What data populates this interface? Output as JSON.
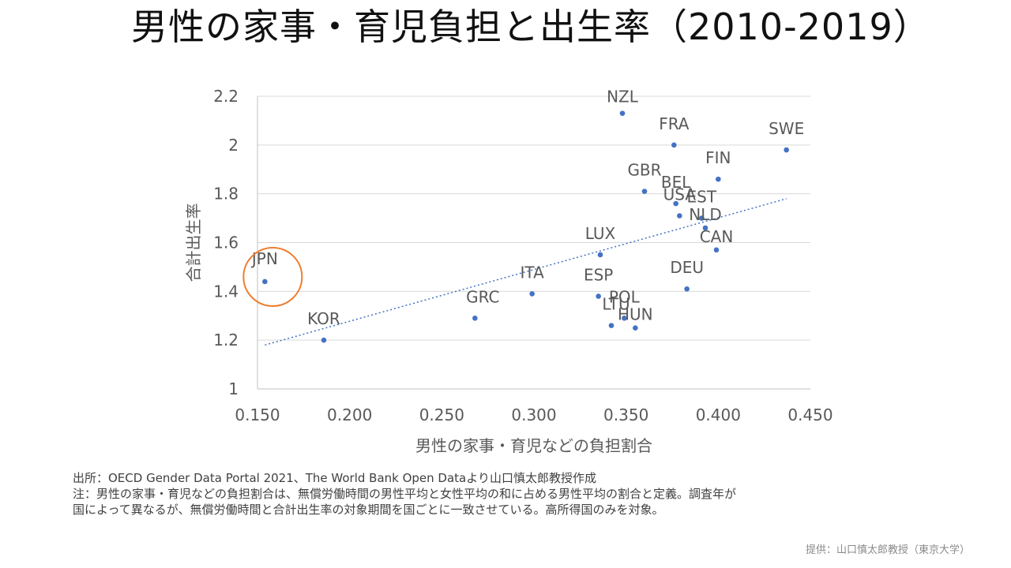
{
  "title": "男性の家事・育児負担と出生率（2010-2019）",
  "notes": {
    "source": "出所：OECD Gender Data Portal 2021、The World Bank Open Dataより山口慎太郎教授作成",
    "note1": "注：男性の家事・育児などの負担割合は、無償労働時間の男性平均と女性平均の和に占める男性平均の割合と定義。調査年が",
    "note2": "国によって異なるが、無償労働時間と合計出生率の対象期間を国ごとに一致させている。高所得国のみを対象。"
  },
  "credit": "提供：山口慎太郎教授（東京大学）",
  "colors": {
    "point": "#4472C4",
    "trend": "#4472C4",
    "highlight": "#ED7D31",
    "grid": "#D9D9D9",
    "axis": "#BFBFBF"
  },
  "chart_data": {
    "type": "scatter",
    "title": "男性の家事・育児負担と出生率（2010-2019）",
    "xlabel": "男性の家事・育児などの負担割合",
    "ylabel": "合計出生率",
    "xlim": [
      0.15,
      0.45
    ],
    "ylim": [
      1.0,
      2.2
    ],
    "xticks": [
      "0.150",
      "0.200",
      "0.250",
      "0.300",
      "0.350",
      "0.400",
      "0.450"
    ],
    "yticks": [
      "1",
      "1.2",
      "1.4",
      "1.6",
      "1.8",
      "2",
      "2.2"
    ],
    "grid": "horizontal",
    "points": [
      {
        "label": "JPN",
        "x": 0.154,
        "y": 1.44
      },
      {
        "label": "KOR",
        "x": 0.186,
        "y": 1.2
      },
      {
        "label": "GRC",
        "x": 0.268,
        "y": 1.29
      },
      {
        "label": "ITA",
        "x": 0.299,
        "y": 1.39
      },
      {
        "label": "LUX",
        "x": 0.336,
        "y": 1.55
      },
      {
        "label": "ESP",
        "x": 0.335,
        "y": 1.38
      },
      {
        "label": "LTU",
        "x": 0.342,
        "y": 1.26
      },
      {
        "label": "POL",
        "x": 0.349,
        "y": 1.29
      },
      {
        "label": "HUN",
        "x": 0.355,
        "y": 1.25
      },
      {
        "label": "NZL",
        "x": 0.348,
        "y": 2.13
      },
      {
        "label": "GBR",
        "x": 0.36,
        "y": 1.81
      },
      {
        "label": "FRA",
        "x": 0.376,
        "y": 2.0
      },
      {
        "label": "BEL",
        "x": 0.377,
        "y": 1.76
      },
      {
        "label": "USA",
        "x": 0.379,
        "y": 1.71
      },
      {
        "label": "EST",
        "x": 0.391,
        "y": 1.7
      },
      {
        "label": "NLD",
        "x": 0.393,
        "y": 1.66
      },
      {
        "label": "CAN",
        "x": 0.399,
        "y": 1.57
      },
      {
        "label": "FIN",
        "x": 0.4,
        "y": 1.86
      },
      {
        "label": "DEU",
        "x": 0.383,
        "y": 1.41
      },
      {
        "label": "SWE",
        "x": 0.437,
        "y": 1.98
      }
    ],
    "trendline": {
      "style": "dotted",
      "x": [
        0.154,
        0.437
      ],
      "y": [
        1.18,
        1.78
      ]
    },
    "highlight": {
      "label": "JPN",
      "style": "circle"
    }
  }
}
